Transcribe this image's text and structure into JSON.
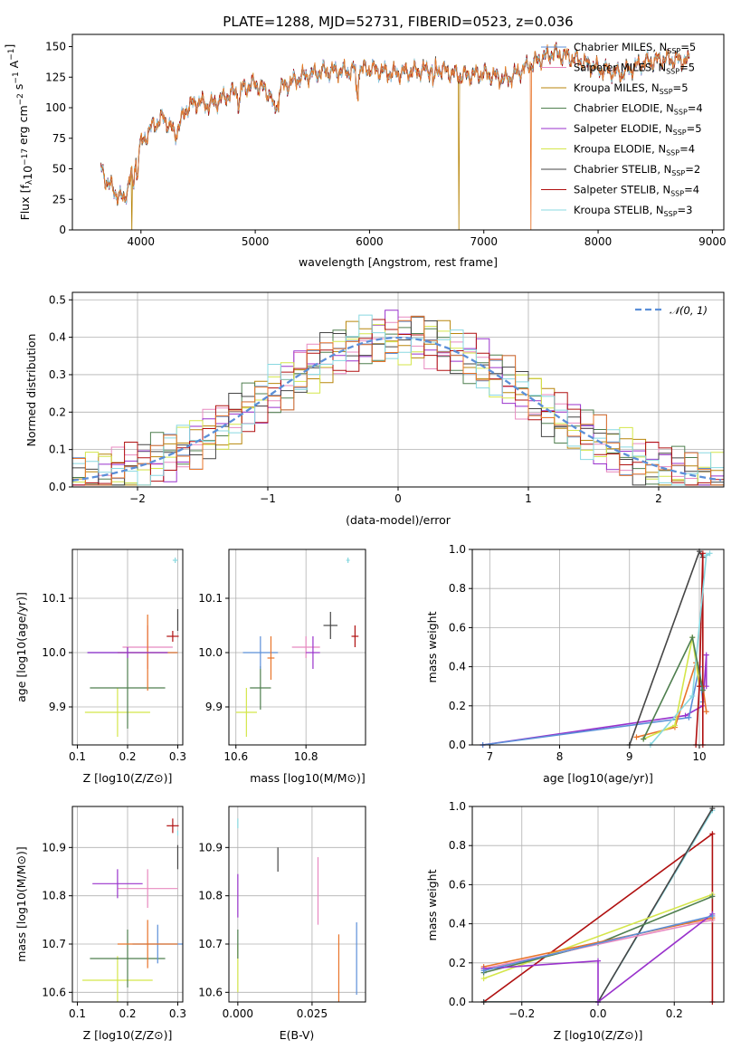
{
  "colors": {
    "Chabrier MILES": "#5b8fd8",
    "Salpeter MILES": "#e889c0",
    "Kroupa MILES": "#b8860b",
    "Chabrier ELODIE": "#4f7f4f",
    "Salpeter ELODIE": "#9932cc",
    "Kroupa ELODIE": "#d4e64a",
    "Chabrier STELIB": "#454545",
    "Salpeter STELIB": "#b01010",
    "Kroupa STELIB": "#88d8e0",
    "extra": "#e8742a"
  },
  "chart_data": [
    {
      "id": "spectrum",
      "type": "line",
      "title": "PLATE=1288, MJD=52731, FIBERID=0523, z=0.036",
      "xlabel": "wavelength [Angstrom, rest frame]",
      "ylabel": "Flux [f$_\\lambda$10$^{-17}$ erg cm$^{-2}$ s$^{-1}$ A$^{-1}$]",
      "xlim": [
        3400,
        9100
      ],
      "ylim": [
        0,
        160
      ],
      "xticks": [
        "4000",
        "5000",
        "6000",
        "7000",
        "8000",
        "9000"
      ],
      "yticks": [
        "0",
        "25",
        "50",
        "75",
        "100",
        "125",
        "150"
      ],
      "grid": false,
      "legend_position": "right",
      "legend": [
        {
          "name": "Chabrier MILES",
          "nssp": "5"
        },
        {
          "name": "Salpeter MILES",
          "nssp": "5"
        },
        {
          "name": "Kroupa MILES",
          "nssp": "5"
        },
        {
          "name": "Chabrier ELODIE",
          "nssp": "4"
        },
        {
          "name": "Salpeter ELODIE",
          "nssp": "5"
        },
        {
          "name": "Kroupa ELODIE",
          "nssp": "4"
        },
        {
          "name": "Chabrier STELIB",
          "nssp": "2"
        },
        {
          "name": "Salpeter STELIB",
          "nssp": "4"
        },
        {
          "name": "Kroupa STELIB",
          "nssp": "3"
        }
      ],
      "continuum": {
        "x": [
          3650,
          3700,
          3800,
          3850,
          3900,
          3950,
          4000,
          4100,
          4200,
          4300,
          4400,
          4500,
          4600,
          4800,
          5000,
          5150,
          5200,
          5400,
          5600,
          5800,
          6000,
          6200,
          6400,
          6600,
          6800,
          7000,
          7200,
          7400,
          7600,
          7800,
          8000,
          8200,
          8400,
          8600,
          8800
        ],
        "y": [
          50,
          40,
          28,
          25,
          40,
          55,
          70,
          85,
          92,
          78,
          100,
          105,
          102,
          112,
          120,
          110,
          115,
          125,
          130,
          130,
          132,
          128,
          130,
          132,
          126,
          128,
          123,
          135,
          145,
          140,
          132,
          128,
          137,
          140,
          138
        ]
      },
      "dips": [
        {
          "series": "Kroupa MILES",
          "x": 3920
        },
        {
          "series": "Kroupa MILES",
          "x": 6780
        },
        {
          "series": "extra",
          "x": 7410
        }
      ]
    },
    {
      "id": "residuals",
      "type": "line",
      "xlabel": "(data-model)/error",
      "ylabel": "Normed distribution",
      "xlim": [
        -2.5,
        2.5
      ],
      "ylim": [
        0,
        0.52
      ],
      "xticks": [
        "−2",
        "−1",
        "0",
        "1",
        "2"
      ],
      "yticks": [
        "0.0",
        "0.1",
        "0.2",
        "0.3",
        "0.4",
        "0.5"
      ],
      "grid": true,
      "legend_position": "top-right",
      "reference": {
        "name": "𝒩(0, 1)",
        "mean": 0,
        "sigma": 1
      }
    },
    {
      "id": "age-vs-Z",
      "type": "scatter",
      "xlabel": "Z [log10(Z/Z⊙)]",
      "ylabel": "age  [log10(age/yr)]",
      "xlim": [
        0.09,
        0.31
      ],
      "ylim": [
        9.83,
        10.19
      ],
      "xticks": [
        "0.1",
        "0.2",
        "0.3"
      ],
      "yticks": [
        "9.9",
        "10.0",
        "10.1"
      ],
      "grid": true,
      "points": [
        {
          "series": "Kroupa ELODIE",
          "x": 0.18,
          "y": 9.89,
          "xerr": 0.065,
          "yerr": 0.045
        },
        {
          "series": "Chabrier ELODIE",
          "x": 0.2,
          "y": 9.935,
          "xerr": 0.075,
          "yerr": 0.075
        },
        {
          "series": "Chabrier MILES",
          "x": 0.21,
          "y": 10.0,
          "xerr": 0.09,
          "yerr": 0.0
        },
        {
          "series": "Salpeter MILES",
          "x": 0.24,
          "y": 10.01,
          "xerr": 0.05,
          "yerr": 0.04
        },
        {
          "series": "extra",
          "x": 0.24,
          "y": 10.0,
          "xerr": 0.06,
          "yerr": 0.07
        },
        {
          "series": "Salpeter ELODIE",
          "x": 0.2,
          "y": 10.0,
          "xerr": 0.08,
          "yerr": 0.01
        },
        {
          "series": "Salpeter STELIB",
          "x": 0.29,
          "y": 10.03,
          "xerr": 0.012,
          "yerr": 0.01
        },
        {
          "series": "Chabrier STELIB",
          "x": 0.3,
          "y": 10.06,
          "xerr": 0.0,
          "yerr": 0.02
        },
        {
          "series": "Kroupa STELIB",
          "x": 0.295,
          "y": 10.17,
          "xerr": 0.005,
          "yerr": 0.005
        }
      ]
    },
    {
      "id": "age-vs-mass",
      "type": "scatter",
      "xlabel": "mass [log10(M/M⊙)]",
      "ylabel": "",
      "xlim": [
        10.58,
        10.97
      ],
      "ylim": [
        9.83,
        10.19
      ],
      "xticks": [
        "10.6",
        "10.8"
      ],
      "yticks": [
        "9.9",
        "10.0",
        "10.1"
      ],
      "grid": true,
      "points": [
        {
          "series": "Kroupa ELODIE",
          "x": 10.63,
          "y": 9.89,
          "xerr": 0.03,
          "yerr": 0.045
        },
        {
          "series": "Chabrier ELODIE",
          "x": 10.67,
          "y": 9.935,
          "xerr": 0.03,
          "yerr": 0.04
        },
        {
          "series": "Chabrier MILES",
          "x": 10.67,
          "y": 10.0,
          "xerr": 0.05,
          "yerr": 0.03
        },
        {
          "series": "extra",
          "x": 10.7,
          "y": 9.99,
          "xerr": 0.01,
          "yerr": 0.04
        },
        {
          "series": "Salpeter MILES",
          "x": 10.8,
          "y": 10.01,
          "xerr": 0.04,
          "yerr": 0.02
        },
        {
          "series": "Salpeter ELODIE",
          "x": 10.82,
          "y": 10.0,
          "xerr": 0.02,
          "yerr": 0.03
        },
        {
          "series": "Chabrier STELIB",
          "x": 10.87,
          "y": 10.05,
          "xerr": 0.02,
          "yerr": 0.025
        },
        {
          "series": "Salpeter STELIB",
          "x": 10.94,
          "y": 10.03,
          "xerr": 0.01,
          "yerr": 0.02
        },
        {
          "series": "Kroupa STELIB",
          "x": 10.92,
          "y": 10.17,
          "xerr": 0.005,
          "yerr": 0.005
        }
      ]
    },
    {
      "id": "weight-vs-age",
      "type": "line",
      "xlabel": "age  [log10(age/yr)]",
      "ylabel": "mass weight",
      "xlim": [
        6.75,
        10.35
      ],
      "ylim": [
        0,
        1.0
      ],
      "xticks": [
        "7",
        "8",
        "9",
        "10"
      ],
      "yticks": [
        "0.0",
        "0.2",
        "0.4",
        "0.6",
        "0.8",
        "1.0"
      ],
      "grid": true,
      "series": [
        {
          "name": "Salpeter ELODIE",
          "x": [
            6.9,
            9.8,
            10.05,
            10.1,
            10.1
          ],
          "y": [
            0.0,
            0.15,
            0.2,
            0.46,
            0.3
          ]
        },
        {
          "name": "Chabrier MILES",
          "x": [
            6.9,
            9.85,
            10.0,
            10.05
          ],
          "y": [
            0.0,
            0.14,
            0.4,
            0.22
          ]
        },
        {
          "name": "extra",
          "x": [
            9.1,
            9.65,
            9.95,
            10.05,
            10.1
          ],
          "y": [
            0.04,
            0.09,
            0.42,
            0.3,
            0.17
          ]
        },
        {
          "name": "Kroupa ELODIE",
          "x": [
            9.2,
            9.65,
            9.9,
            10.0
          ],
          "y": [
            0.03,
            0.1,
            0.55,
            0.3
          ]
        },
        {
          "name": "Chabrier STELIB",
          "x": [
            9.0,
            10.0,
            10.05
          ],
          "y": [
            0.0,
            0.99,
            0.96
          ]
        },
        {
          "name": "Salpeter STELIB",
          "x": [
            9.95,
            10.0,
            10.05,
            10.05
          ],
          "y": [
            0.0,
            0.3,
            0.98,
            0.0
          ]
        },
        {
          "name": "Kroupa STELIB",
          "x": [
            9.3,
            9.9,
            10.1,
            10.15
          ],
          "y": [
            0.0,
            0.25,
            0.97,
            0.98
          ]
        },
        {
          "name": "Chabrier ELODIE",
          "x": [
            9.2,
            9.9,
            10.05
          ],
          "y": [
            0.03,
            0.55,
            0.28
          ]
        }
      ]
    },
    {
      "id": "mass-vs-Z",
      "type": "scatter",
      "xlabel": "Z [log10(Z/Z⊙)]",
      "ylabel": "mass [log10(M/M⊙)]",
      "xlim": [
        0.09,
        0.31
      ],
      "ylim": [
        10.58,
        10.985
      ],
      "xticks": [
        "0.1",
        "0.2",
        "0.3"
      ],
      "yticks": [
        "10.6",
        "10.7",
        "10.8",
        "10.9"
      ],
      "grid": true,
      "points": [
        {
          "series": "Kroupa ELODIE",
          "x": 0.18,
          "y": 10.625,
          "xerr": 0.07,
          "yerr": 0.05
        },
        {
          "series": "Chabrier ELODIE",
          "x": 0.2,
          "y": 10.67,
          "xerr": 0.075,
          "yerr": 0.06
        },
        {
          "series": "Chabrier MILES",
          "x": 0.26,
          "y": 10.7,
          "xerr": 0.05,
          "yerr": 0.04
        },
        {
          "series": "extra",
          "x": 0.24,
          "y": 10.7,
          "xerr": 0.06,
          "yerr": 0.05
        },
        {
          "series": "Salpeter MILES",
          "x": 0.24,
          "y": 10.815,
          "xerr": 0.06,
          "yerr": 0.04
        },
        {
          "series": "Salpeter ELODIE",
          "x": 0.18,
          "y": 10.825,
          "xerr": 0.05,
          "yerr": 0.03
        },
        {
          "series": "Salpeter STELIB",
          "x": 0.29,
          "y": 10.945,
          "xerr": 0.012,
          "yerr": 0.015
        },
        {
          "series": "Chabrier STELIB",
          "x": 0.3,
          "y": 10.88,
          "xerr": 0.0,
          "yerr": 0.025
        },
        {
          "series": "Kroupa STELIB",
          "x": 0.3,
          "y": 10.93,
          "xerr": 0.0,
          "yerr": 0.005
        }
      ]
    },
    {
      "id": "mass-vs-EBV",
      "type": "scatter",
      "xlabel": "E(B-V)",
      "ylabel": "",
      "xlim": [
        -0.003,
        0.043
      ],
      "ylim": [
        10.58,
        10.985
      ],
      "xticks": [
        "0.000",
        "0.025"
      ],
      "yticks": [
        "10.6",
        "10.7",
        "10.8",
        "10.9"
      ],
      "grid": true,
      "points": [
        {
          "series": "Kroupa ELODIE",
          "x": 0.0,
          "y": 10.65,
          "xerr": 0.0,
          "yerr": 0.05
        },
        {
          "series": "Chabrier ELODIE",
          "x": 0.0,
          "y": 10.7,
          "xerr": 0.0,
          "yerr": 0.03
        },
        {
          "series": "Salpeter ELODIE",
          "x": 0.0,
          "y": 10.8,
          "xerr": 0.0,
          "yerr": 0.045
        },
        {
          "series": "Kroupa STELIB",
          "x": 0.0,
          "y": 10.95,
          "xerr": 0.0,
          "yerr": 0.01
        },
        {
          "series": "Chabrier STELIB",
          "x": 0.0135,
          "y": 10.875,
          "xerr": 0.0,
          "yerr": 0.025
        },
        {
          "series": "Salpeter MILES",
          "x": 0.027,
          "y": 10.81,
          "xerr": 0.0,
          "yerr": 0.07
        },
        {
          "series": "extra",
          "x": 0.034,
          "y": 10.65,
          "xerr": 0.0,
          "yerr": 0.07
        },
        {
          "series": "Chabrier MILES",
          "x": 0.04,
          "y": 10.67,
          "xerr": 0.0,
          "yerr": 0.075
        }
      ]
    },
    {
      "id": "weight-vs-Z",
      "type": "line",
      "xlabel": "Z [log10(Z/Z⊙)]",
      "ylabel": "mass weight",
      "xlim": [
        -0.33,
        0.33
      ],
      "ylim": [
        0,
        1.0
      ],
      "xticks": [
        "−0.2",
        "0.0",
        "0.2"
      ],
      "yticks": [
        "0.0",
        "0.2",
        "0.4",
        "0.6",
        "0.8",
        "1.0"
      ],
      "grid": true,
      "series": [
        {
          "name": "Salpeter STELIB",
          "x": [
            -0.3,
            0.3,
            0.3
          ],
          "y": [
            0.0,
            0.86,
            0.0
          ]
        },
        {
          "name": "Kroupa STELIB",
          "x": [
            -0.3,
            0.0,
            0.0,
            0.3
          ],
          "y": [
            0.0,
            0.0,
            0.0,
            0.98
          ]
        },
        {
          "name": "Chabrier STELIB",
          "x": [
            -0.3,
            0.0,
            0.3
          ],
          "y": [
            0.0,
            0.0,
            0.99
          ]
        },
        {
          "name": "Kroupa ELODIE",
          "x": [
            -0.3,
            0.3
          ],
          "y": [
            0.12,
            0.55
          ]
        },
        {
          "name": "Chabrier ELODIE",
          "x": [
            -0.3,
            0.0,
            0.3
          ],
          "y": [
            0.15,
            0.3,
            0.54
          ]
        },
        {
          "name": "Salpeter MILES",
          "x": [
            -0.3,
            0.3
          ],
          "y": [
            0.17,
            0.42
          ]
        },
        {
          "name": "extra",
          "x": [
            -0.3,
            0.3
          ],
          "y": [
            0.18,
            0.43
          ]
        },
        {
          "name": "Salpeter ELODIE",
          "x": [
            -0.3,
            0.0,
            0.0,
            0.3
          ],
          "y": [
            0.17,
            0.21,
            0.0,
            0.45
          ]
        },
        {
          "name": "Chabrier MILES",
          "x": [
            -0.3,
            0.3
          ],
          "y": [
            0.16,
            0.44
          ]
        }
      ]
    }
  ]
}
